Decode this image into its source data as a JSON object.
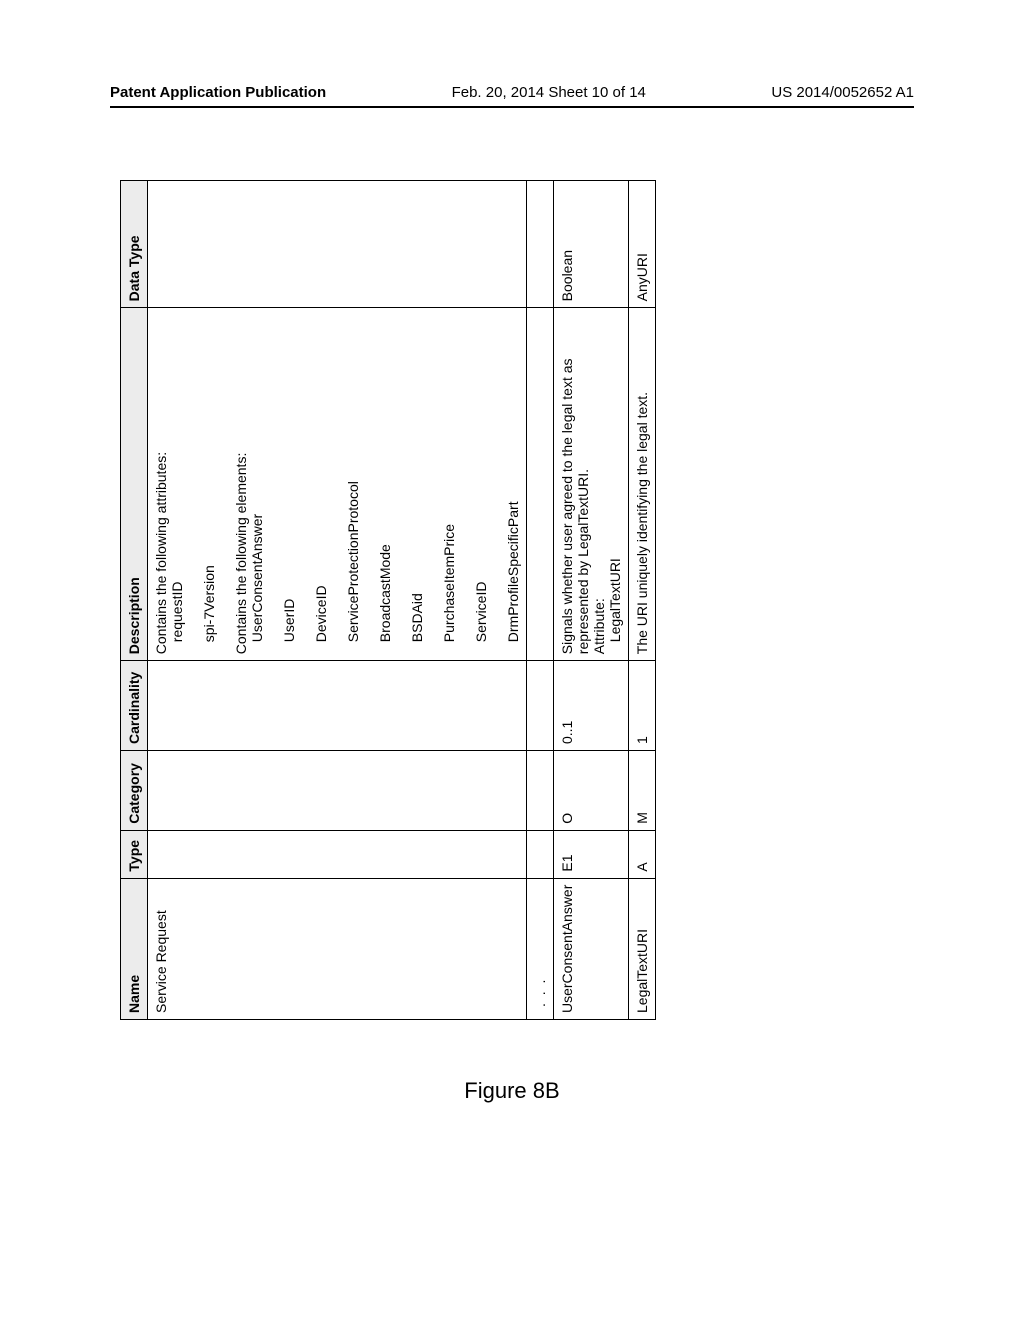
{
  "header": {
    "left": "Patent Application Publication",
    "center": "Feb. 20, 2014  Sheet 10 of 14",
    "right": "US 2014/0052652 A1"
  },
  "table": {
    "columns": [
      "Name",
      "Type",
      "Category",
      "Cardinality",
      "Description",
      "Data Type"
    ],
    "rows": [
      {
        "name": "Service Request",
        "type": "",
        "category": "",
        "cardinality": "",
        "description_lines": [
          "Contains the following attributes:",
          "  requestID",
          "  spi-7Version",
          "Contains the following elements:",
          "  UserConsentAnswer",
          "  UserID",
          "  DeviceID",
          "  ServiceProtectionProtocol",
          "  BroadcastMode",
          "  BSDAid",
          "  PurchaseItemPrice",
          "  ServiceID",
          "  DrmProfileSpecificPart"
        ],
        "datatype": ""
      },
      {
        "name": ". . .",
        "type": "",
        "category": "",
        "cardinality": "",
        "description_lines": [
          ""
        ],
        "datatype": "",
        "ellipsis": true
      },
      {
        "name": "UserConsentAnswer",
        "type": "E1",
        "category": "O",
        "cardinality": "0..1",
        "description_lines": [
          "Signals whether user agreed to the legal text as represented by LegalTextURI.",
          "Attribute:",
          "  LegalTextURI"
        ],
        "datatype": "Boolean"
      },
      {
        "name": "LegalTextURI",
        "type": "A",
        "category": "M",
        "cardinality": "1",
        "description_lines": [
          "The URI uniquely identifying the legal text."
        ],
        "datatype": "AnyURI"
      }
    ]
  },
  "caption": "Figure 8B"
}
